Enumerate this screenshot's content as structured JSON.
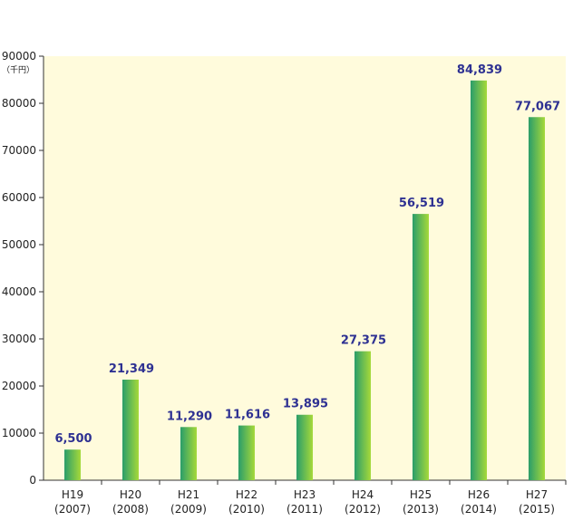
{
  "chart_data": {
    "type": "bar",
    "title": "",
    "xlabel": "",
    "ylabel": "",
    "unit": "（千円）",
    "ylim": [
      0,
      90000
    ],
    "yticks": [
      "0",
      "10000",
      "20000",
      "30000",
      "40000",
      "50000",
      "60000",
      "70000",
      "80000",
      "90000"
    ],
    "categories": [
      {
        "era": "H19",
        "year": "(2007)"
      },
      {
        "era": "H20",
        "year": "(2008)"
      },
      {
        "era": "H21",
        "year": "(2009)"
      },
      {
        "era": "H22",
        "year": "(2010)"
      },
      {
        "era": "H23",
        "year": "(2011)"
      },
      {
        "era": "H24",
        "year": "(2012)"
      },
      {
        "era": "H25",
        "year": "(2013)"
      },
      {
        "era": "H26",
        "year": "(2014)"
      },
      {
        "era": "H27",
        "year": "(2015)"
      }
    ],
    "values": [
      6500,
      21349,
      11290,
      11616,
      13895,
      27375,
      56519,
      84839,
      77067
    ],
    "value_labels": [
      "6,500",
      "21,349",
      "11,290",
      "11,616",
      "13,895",
      "27,375",
      "56,519",
      "84,839",
      "77,067"
    ],
    "plot_background": "#fffbdc",
    "bar_colors": [
      "#2a9d6a",
      "#a6d93a"
    ],
    "value_label_color": "#2e3192",
    "grid": false,
    "legend": "none"
  }
}
